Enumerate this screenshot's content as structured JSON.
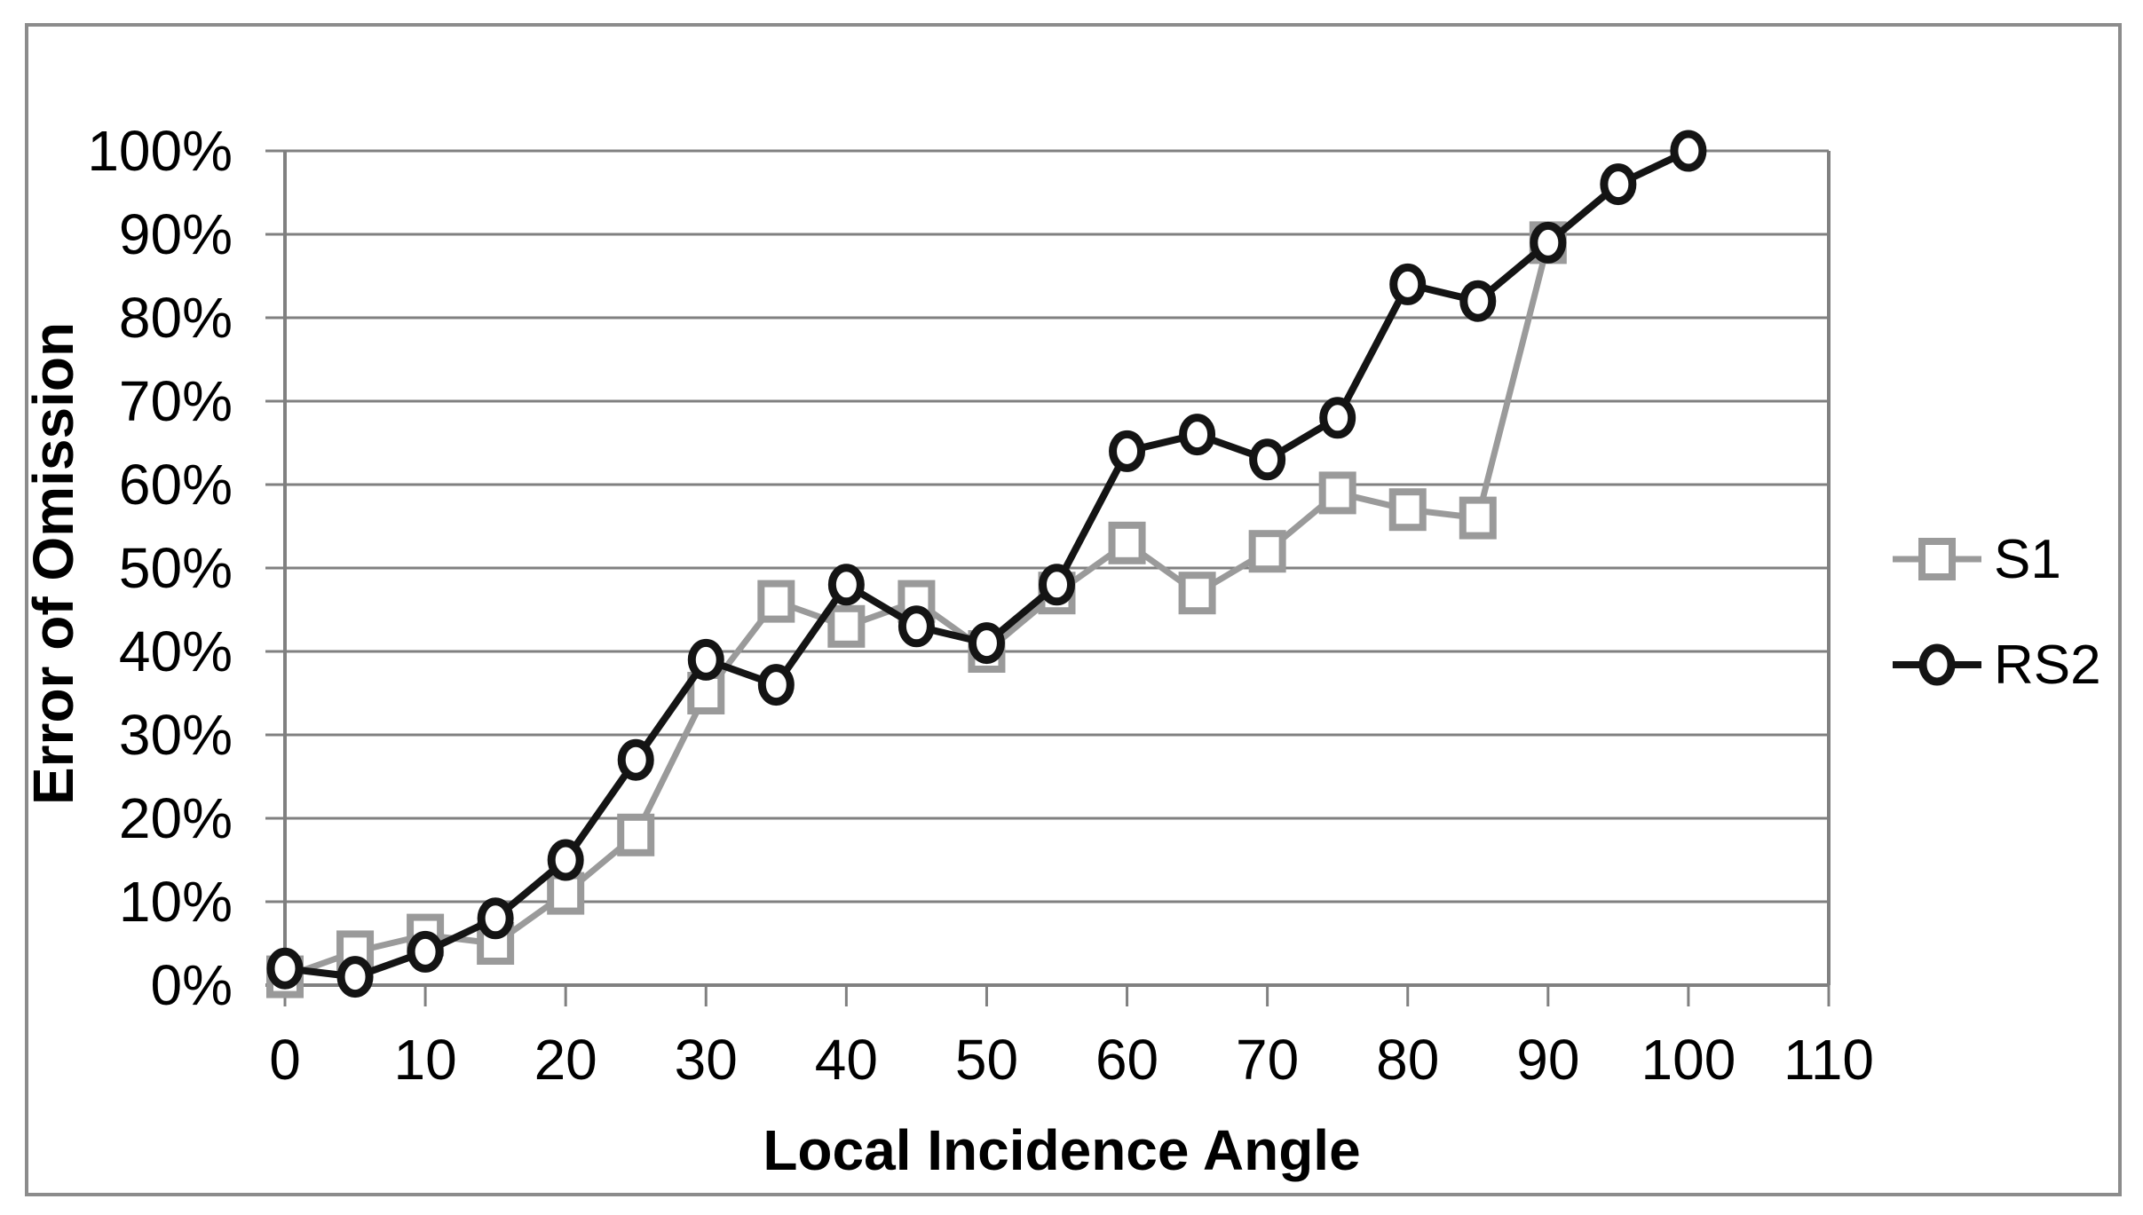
{
  "chart_data": {
    "type": "line",
    "title": "",
    "xlabel": "Local Incidence Angle",
    "ylabel": "Error of Omission",
    "xlim": [
      0,
      110
    ],
    "ylim": [
      0,
      100
    ],
    "grid": true,
    "legend_position": "right-outside",
    "x_ticks": [
      0,
      10,
      20,
      30,
      40,
      50,
      60,
      70,
      80,
      90,
      100,
      110
    ],
    "y_ticks": [
      "0%",
      "10%",
      "20%",
      "30%",
      "40%",
      "50%",
      "60%",
      "70%",
      "80%",
      "90%",
      "100%"
    ],
    "series": [
      {
        "name": "S1",
        "marker": "square",
        "color": "#9a9a9a",
        "x": [
          0,
          5,
          10,
          15,
          20,
          25,
          30,
          35,
          40,
          45,
          50,
          55,
          60,
          65,
          70,
          75,
          80,
          85,
          90
        ],
        "values": [
          1,
          4,
          6,
          5,
          11,
          18,
          35,
          46,
          43,
          46,
          40,
          47,
          53,
          47,
          52,
          59,
          57,
          56,
          89
        ]
      },
      {
        "name": "RS2",
        "marker": "circle",
        "color": "#141414",
        "x": [
          0,
          5,
          10,
          15,
          20,
          25,
          30,
          35,
          40,
          45,
          50,
          55,
          60,
          65,
          70,
          75,
          80,
          85,
          90,
          95,
          100
        ],
        "values": [
          2,
          1,
          4,
          8,
          15,
          27,
          39,
          36,
          48,
          43,
          41,
          48,
          64,
          66,
          63,
          68,
          84,
          82,
          89,
          96,
          100
        ]
      }
    ],
    "colors": {
      "grid": "#808080",
      "axis": "#808080",
      "chart_border": "#8c8c8c",
      "background": "#ffffff",
      "text": "#000000"
    }
  }
}
